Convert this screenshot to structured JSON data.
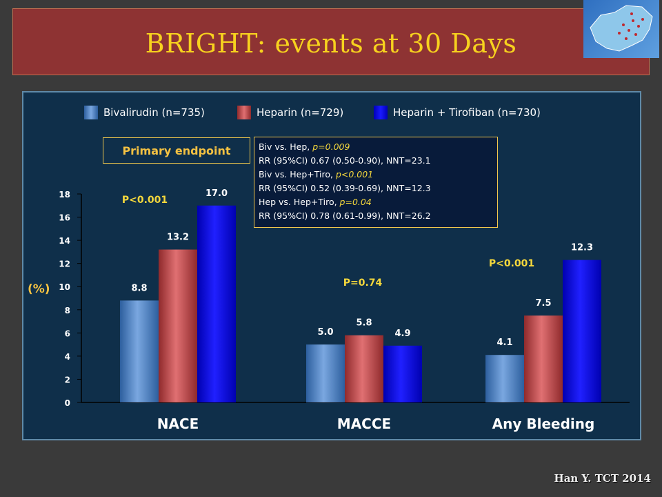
{
  "title": "BRIGHT: events at 30 Days",
  "citation": "Han Y. TCT 2014",
  "map_alt": "China map",
  "primary_endpoint": "Primary endpoint",
  "stats": {
    "line1_prefix": "Biv vs. Hep, ",
    "line1_p": "p=0.009",
    "line2": "RR (95%CI) 0.67 (0.50-0.90), NNT=23.1",
    "line3_prefix": "Biv vs. Hep+Tiro, ",
    "line3_p": "p<0.001",
    "line4": "RR (95%CI) 0.52 (0.39-0.69), NNT=12.3",
    "line5_prefix": "Hep vs. Hep+Tiro, ",
    "line5_p": "p=0.04",
    "line6": "RR (95%CI) 0.78 (0.61-0.99), NNT=26.2"
  },
  "chart_data": {
    "type": "bar",
    "title": "BRIGHT: events at 30 Days",
    "ylabel": "(%)",
    "ylim": [
      0,
      18
    ],
    "yticks": [
      0,
      2,
      4,
      6,
      8,
      10,
      12,
      14,
      16,
      18
    ],
    "categories": [
      "NACE",
      "MACCE",
      "Any Bleeding"
    ],
    "series": [
      {
        "name": "Bivalirudin (n=735)",
        "values": [
          8.8,
          5.0,
          4.1
        ],
        "color": "#4f7fc0",
        "labels": [
          "8.8",
          "5.0",
          "4.1"
        ]
      },
      {
        "name": "Heparin (n=729)",
        "values": [
          13.2,
          5.8,
          7.5
        ],
        "color": "#c0484a",
        "labels": [
          "13.2",
          "5.8",
          "7.5"
        ]
      },
      {
        "name": "Heparin + Tirofiban (n=730)",
        "values": [
          17.0,
          4.9,
          12.3
        ],
        "color": "#0000ee",
        "labels": [
          "17.0",
          "4.9",
          "12.3"
        ]
      }
    ],
    "p_values": [
      "P<0.001",
      "P=0.74",
      "P<0.001"
    ],
    "legend_position": "top",
    "grid": false
  }
}
